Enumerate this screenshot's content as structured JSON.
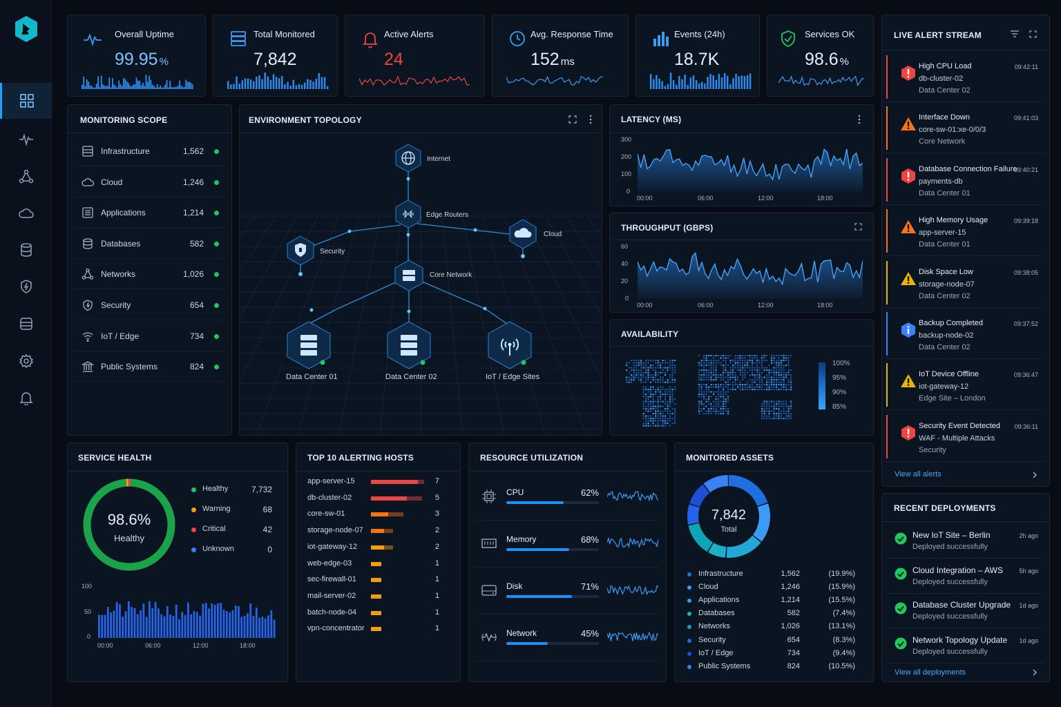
{
  "kpis": [
    {
      "label": "Overall Uptime",
      "value": "99.95",
      "unit": "%",
      "color": "#7cc4ff"
    },
    {
      "label": "Total Monitored",
      "value": "7,842",
      "unit": "",
      "color": "#e6edf7"
    },
    {
      "label": "Active Alerts",
      "value": "24",
      "unit": "",
      "color": "#ef4444"
    },
    {
      "label": "Avg. Response Time",
      "value": "152",
      "unit": "ms",
      "color": "#e6edf7"
    },
    {
      "label": "Events (24h)",
      "value": "18.7",
      "unit": "K",
      "color": "#e6edf7"
    },
    {
      "label": "Services OK",
      "value": "98.6",
      "unit": "%",
      "color": "#e6edf7"
    }
  ],
  "scope": {
    "title": "MONITORING SCOPE",
    "items": [
      {
        "name": "Infrastructure",
        "count": "1,562",
        "icon": "server-icon"
      },
      {
        "name": "Cloud",
        "count": "1,246",
        "icon": "cloud-icon"
      },
      {
        "name": "Applications",
        "count": "1,214",
        "icon": "apps-icon"
      },
      {
        "name": "Databases",
        "count": "582",
        "icon": "database-icon"
      },
      {
        "name": "Networks",
        "count": "1,026",
        "icon": "network-icon"
      },
      {
        "name": "Security",
        "count": "654",
        "icon": "shield-icon"
      },
      {
        "name": "IoT / Edge",
        "count": "734",
        "icon": "wifi-icon"
      },
      {
        "name": "Public Systems",
        "count": "824",
        "icon": "building-icon"
      }
    ]
  },
  "topology": {
    "title": "ENVIRONMENT TOPOLOGY",
    "nodes": {
      "internet": "Internet",
      "edge": "Edge Routers",
      "cloud": "Cloud",
      "security": "Security",
      "core": "Core Network",
      "dc1": "Data Center 01",
      "dc2": "Data Center 02",
      "iot": "IoT / Edge Sites"
    }
  },
  "latency": {
    "title": "LATENCY (MS)",
    "yticks": [
      "300",
      "200",
      "100",
      "0"
    ],
    "xticks": [
      "00:00",
      "06:00",
      "12:00",
      "18:00"
    ]
  },
  "throughput": {
    "title": "THROUGHPUT (GBPS)",
    "yticks": [
      "60",
      "40",
      "20",
      "0"
    ],
    "xticks": [
      "00:00",
      "06:00",
      "12:00",
      "18:00"
    ]
  },
  "availability": {
    "title": "AVAILABILITY",
    "scale": [
      "100%",
      "95%",
      "90%",
      "85%"
    ]
  },
  "alerts": {
    "title": "LIVE ALERT STREAM",
    "view_all": "View all alerts",
    "items": [
      {
        "title": "High CPU Load",
        "host": "db-cluster-02",
        "loc": "Data Center 02",
        "time": "09:42:11",
        "severity": "critical"
      },
      {
        "title": "Interface Down",
        "host": "core-sw-01:xe-0/0/3",
        "loc": "Core Network",
        "time": "09:41:03",
        "severity": "warning"
      },
      {
        "title": "Database Connection Failure",
        "host": "payments-db",
        "loc": "Data Center 01",
        "time": "09:40:21",
        "severity": "critical"
      },
      {
        "title": "High Memory Usage",
        "host": "app-server-15",
        "loc": "Data Center 01",
        "time": "09:39:18",
        "severity": "warning"
      },
      {
        "title": "Disk Space Low",
        "host": "storage-node-07",
        "loc": "Data Center 02",
        "time": "09:38:05",
        "severity": "minor"
      },
      {
        "title": "Backup Completed",
        "host": "backup-node-02",
        "loc": "Data Center 02",
        "time": "09:37:52",
        "severity": "info"
      },
      {
        "title": "IoT Device Offline",
        "host": "iot-gateway-12",
        "loc": "Edge Site – London",
        "time": "09:36:47",
        "severity": "minor"
      },
      {
        "title": "Security Event Detected",
        "host": "WAF - Multiple Attacks",
        "loc": "Security",
        "time": "09:36:11",
        "severity": "critical"
      }
    ]
  },
  "deployments": {
    "title": "RECENT DEPLOYMENTS",
    "view_all": "View all deployments",
    "items": [
      {
        "title": "New IoT Site – Berlin",
        "status": "Deployed successfully",
        "age": "2h ago"
      },
      {
        "title": "Cloud Integration – AWS",
        "status": "Deployed successfully",
        "age": "5h ago"
      },
      {
        "title": "Database Cluster Upgrade",
        "status": "Deployed successfully",
        "age": "1d ago"
      },
      {
        "title": "Network Topology Update",
        "status": "Deployed successfully",
        "age": "1d ago"
      }
    ]
  },
  "service_health": {
    "title": "SERVICE HEALTH",
    "center_value": "98.6%",
    "center_label": "Healthy",
    "legend": [
      {
        "name": "Healthy",
        "value": "7,732",
        "color": "#22c55e"
      },
      {
        "name": "Warning",
        "value": "68",
        "color": "#f59e0b"
      },
      {
        "name": "Critical",
        "value": "42",
        "color": "#ef4444"
      },
      {
        "name": "Unknown",
        "value": "0",
        "color": "#3b82f6"
      }
    ],
    "yticks": [
      "100",
      "50",
      "0"
    ],
    "xticks": [
      "00:00",
      "06:00",
      "12:00",
      "18:00"
    ]
  },
  "hosts": {
    "title": "TOP 10 ALERTING HOSTS",
    "items": [
      {
        "name": "app-server-15",
        "value": "7",
        "red": 0.62,
        "dark": 0.08,
        "color": "#ef4444"
      },
      {
        "name": "db-cluster-02",
        "value": "5",
        "red": 0.47,
        "dark": 0.2,
        "color": "#ef4444"
      },
      {
        "name": "core-sw-01",
        "value": "3",
        "red": 0.23,
        "dark": 0.2,
        "color": "#f97316"
      },
      {
        "name": "storage-node-07",
        "value": "2",
        "red": 0.17,
        "dark": 0.12,
        "color": "#f97316"
      },
      {
        "name": "iot-gateway-12",
        "value": "2",
        "red": 0.17,
        "dark": 0.12,
        "color": "#f59e0b"
      },
      {
        "name": "web-edge-03",
        "value": "1",
        "red": 0.14,
        "dark": 0,
        "color": "#f59e0b"
      },
      {
        "name": "sec-firewall-01",
        "value": "1",
        "red": 0.14,
        "dark": 0,
        "color": "#f59e0b"
      },
      {
        "name": "mail-server-02",
        "value": "1",
        "red": 0.14,
        "dark": 0,
        "color": "#f59e0b"
      },
      {
        "name": "batch-node-04",
        "value": "1",
        "red": 0.14,
        "dark": 0,
        "color": "#f59e0b"
      },
      {
        "name": "vpn-concentrator",
        "value": "1",
        "red": 0.14,
        "dark": 0,
        "color": "#f59e0b"
      }
    ]
  },
  "resources": {
    "title": "RESOURCE UTILIZATION",
    "items": [
      {
        "name": "CPU",
        "pct": "62%",
        "fill": 0.62,
        "icon": "cpu-icon"
      },
      {
        "name": "Memory",
        "pct": "68%",
        "fill": 0.68,
        "icon": "memory-icon"
      },
      {
        "name": "Disk",
        "pct": "71%",
        "fill": 0.71,
        "icon": "disk-icon"
      },
      {
        "name": "Network",
        "pct": "45%",
        "fill": 0.45,
        "icon": "network-activity-icon"
      }
    ]
  },
  "assets": {
    "title": "MONITORED ASSETS",
    "total": "7,842",
    "total_label": "Total",
    "items": [
      {
        "name": "Infrastructure",
        "count": "1,562",
        "pct": "(19.9%)",
        "share": 19.9,
        "color": "#1f6fe0"
      },
      {
        "name": "Cloud",
        "count": "1,246",
        "pct": "(15.9%)",
        "share": 15.9,
        "color": "#3b9cf6"
      },
      {
        "name": "Applications",
        "count": "1,214",
        "pct": "(15.5%)",
        "share": 15.5,
        "color": "#22a7d6"
      },
      {
        "name": "Databases",
        "count": "582",
        "pct": "(7.4%)",
        "share": 7.4,
        "color": "#1bb0c8"
      },
      {
        "name": "Networks",
        "count": "1,026",
        "pct": "(13.1%)",
        "share": 13.1,
        "color": "#0ea5b7"
      },
      {
        "name": "Security",
        "count": "654",
        "pct": "(8.3%)",
        "share": 8.3,
        "color": "#2563eb"
      },
      {
        "name": "IoT / Edge",
        "count": "734",
        "pct": "(9.4%)",
        "share": 9.4,
        "color": "#1d4ed8"
      },
      {
        "name": "Public Systems",
        "count": "824",
        "pct": "(10.5%)",
        "share": 10.5,
        "color": "#3b82f6"
      }
    ]
  }
}
